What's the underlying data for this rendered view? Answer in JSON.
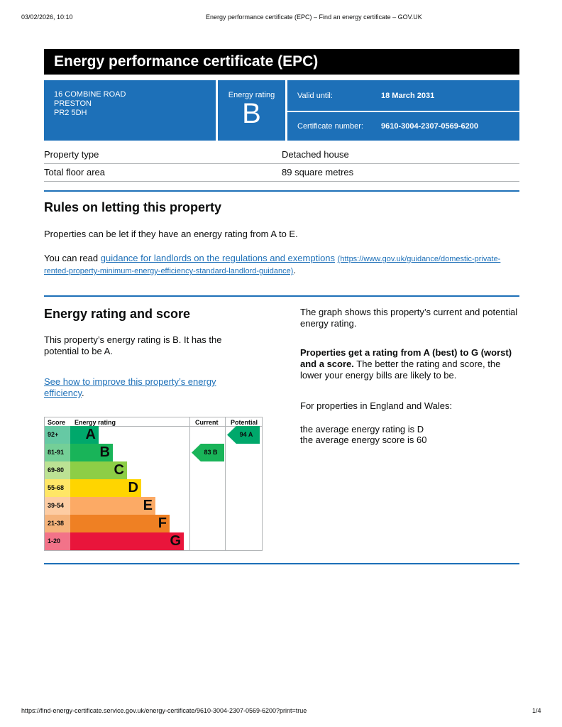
{
  "browser": {
    "datetime": "03/02/2026, 10:10",
    "page_title": "Energy performance certificate (EPC) – Find an energy certificate – GOV.UK",
    "url": "https://find-energy-certificate.service.gov.uk/energy-certificate/9610-3004-2307-0569-6200?print=true",
    "page_count": "1/4"
  },
  "title": "Energy performance certificate (EPC)",
  "address": {
    "line1": "16 COMBINE ROAD",
    "line2": "PRESTON",
    "line3": "PR2 5DH"
  },
  "energy_rating": {
    "label": "Energy rating",
    "value": "B"
  },
  "valid_until": {
    "label": "Valid until:",
    "value": "18 March 2031"
  },
  "certificate_number": {
    "label": "Certificate number:",
    "value": "9610-3004-2307-0569-6200"
  },
  "property": [
    {
      "label": "Property type",
      "value": "Detached house"
    },
    {
      "label": "Total floor area",
      "value": "89 square metres"
    }
  ],
  "rules": {
    "heading": "Rules on letting this property",
    "text": "Properties can be let if they have an energy rating from A to E.",
    "read_prefix": "You can read ",
    "link_text": "guidance for landlords on the regulations and exemptions",
    "link_url": "(https://www.gov.uk/guidance/domestic-private-rented-property-minimum-energy-efficiency-standard-landlord-guidance)",
    "suffix": "."
  },
  "score": {
    "heading": "Energy rating and score",
    "text": "This property’s energy rating is B. It has the potential to be A.",
    "improve_link": "See how to improve this property’s energy efficiency",
    "improve_suffix": ".",
    "right1": "The graph shows this property’s current and potential energy rating.",
    "right2_bold": "Properties get a rating from A (best) to G (worst) and a score.",
    "right2": " The better the rating and score, the lower your energy bills are likely to be.",
    "right3": "For properties in England and Wales:",
    "right4": "the average energy rating is D",
    "right5": "the average energy score is 60"
  },
  "chart_data": {
    "type": "table",
    "headers": [
      "Score",
      "Energy rating",
      "Current",
      "Potential"
    ],
    "bands": [
      {
        "score": "92+",
        "letter": "A",
        "color": "#00a86b",
        "tint": "#66c9a4"
      },
      {
        "score": "81-91",
        "letter": "B",
        "color": "#19b459",
        "tint": "#74cf97"
      },
      {
        "score": "69-80",
        "letter": "C",
        "color": "#8dce46",
        "tint": "#bce294"
      },
      {
        "score": "55-68",
        "letter": "D",
        "color": "#ffd500",
        "tint": "#ffe666"
      },
      {
        "score": "39-54",
        "letter": "E",
        "color": "#fcaa65",
        "tint": "#fdcca3"
      },
      {
        "score": "21-38",
        "letter": "F",
        "color": "#ef8023",
        "tint": "#f5b37b"
      },
      {
        "score": "1-20",
        "letter": "G",
        "color": "#e9153b",
        "tint": "#f27389"
      }
    ],
    "current": {
      "score": 83,
      "letter": "B",
      "label": "83  B"
    },
    "potential": {
      "score": 94,
      "letter": "A",
      "label": "94  A"
    }
  }
}
